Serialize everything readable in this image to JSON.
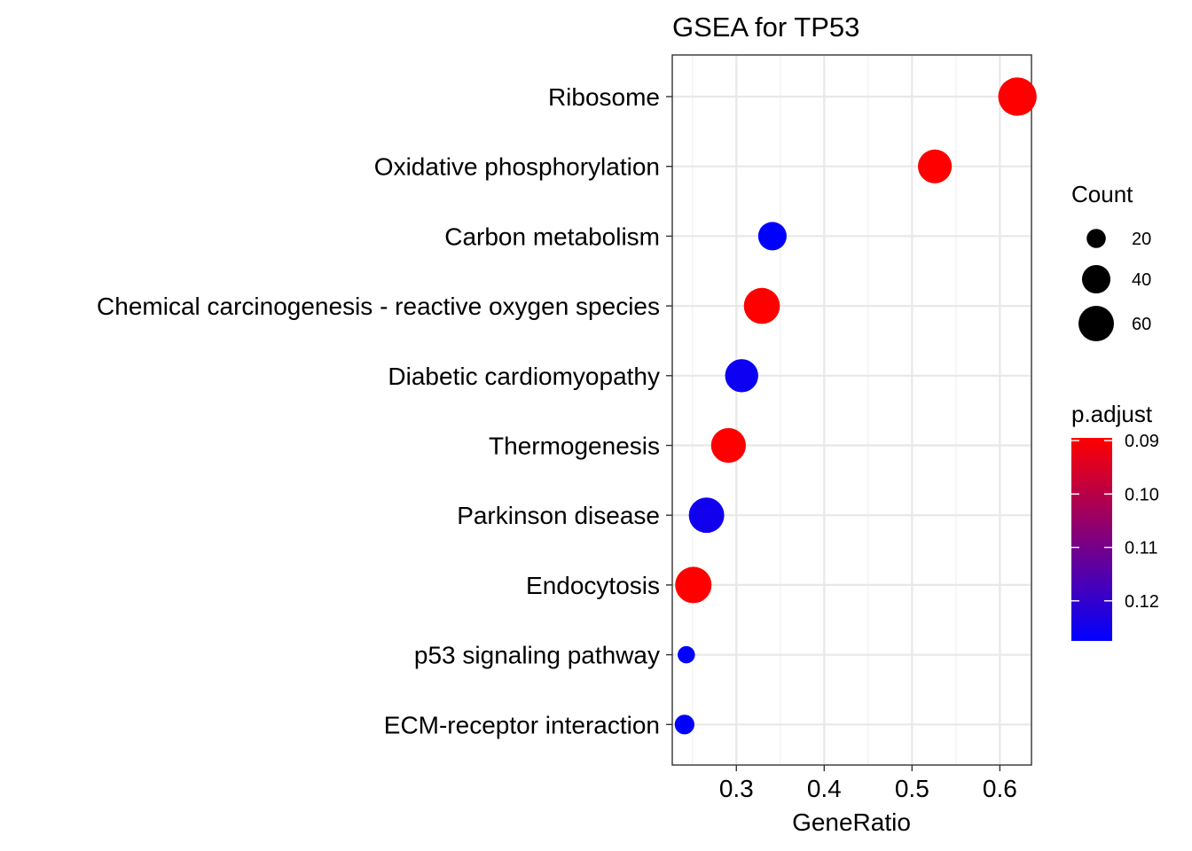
{
  "chart_data": {
    "type": "scatter",
    "title": "GSEA for TP53",
    "xlabel": "GeneRatio",
    "ylabel": "",
    "xlim": [
      0.227,
      0.636
    ],
    "xticks": [
      "0.3",
      "0.4",
      "0.5",
      "0.6"
    ],
    "xtick_values": [
      0.3,
      0.4,
      0.5,
      0.6
    ],
    "grid": true,
    "categories": [
      "Ribosome",
      "Oxidative phosphorylation",
      "Carbon metabolism",
      "Chemical carcinogenesis - reactive oxygen species",
      "Diabetic cardiomyopathy",
      "Thermogenesis",
      "Parkinson disease",
      "Endocytosis",
      "p53 signaling pathway",
      "ECM-receptor interaction"
    ],
    "points": [
      {
        "category": "Ribosome",
        "gene_ratio": 0.62,
        "count": 70,
        "p_adjust": 0.0895
      },
      {
        "category": "Oxidative phosphorylation",
        "gene_ratio": 0.526,
        "count": 55,
        "p_adjust": 0.0895
      },
      {
        "category": "Carbon metabolism",
        "gene_ratio": 0.341,
        "count": 40,
        "p_adjust": 0.1275
      },
      {
        "category": "Chemical carcinogenesis - reactive oxygen species",
        "gene_ratio": 0.329,
        "count": 62,
        "p_adjust": 0.0895
      },
      {
        "category": "Diabetic cardiomyopathy",
        "gene_ratio": 0.306,
        "count": 53,
        "p_adjust": 0.1255
      },
      {
        "category": "Thermogenesis",
        "gene_ratio": 0.291,
        "count": 58,
        "p_adjust": 0.0895
      },
      {
        "category": "Parkinson disease",
        "gene_ratio": 0.266,
        "count": 60,
        "p_adjust": 0.125
      },
      {
        "category": "Endocytosis",
        "gene_ratio": 0.251,
        "count": 63,
        "p_adjust": 0.0895
      },
      {
        "category": "p53 signaling pathway",
        "gene_ratio": 0.243,
        "count": 17,
        "p_adjust": 0.1275
      },
      {
        "category": "ECM-receptor interaction",
        "gene_ratio": 0.241,
        "count": 21,
        "p_adjust": 0.1275
      }
    ],
    "size_legend": {
      "title": "Count",
      "values": [
        20,
        40,
        60
      ],
      "labels": [
        "20",
        "40",
        "60"
      ],
      "range": [
        15,
        72
      ]
    },
    "color_legend": {
      "title": "p.adjust",
      "ticks": [
        0.09,
        0.1,
        0.11,
        0.12
      ],
      "labels": [
        "0.09",
        "0.10",
        "0.11",
        "0.12"
      ],
      "range": [
        0.0895,
        0.1275
      ],
      "low_color": "#ff0000",
      "high_color": "#0000ff"
    },
    "legend_placement": "right"
  }
}
